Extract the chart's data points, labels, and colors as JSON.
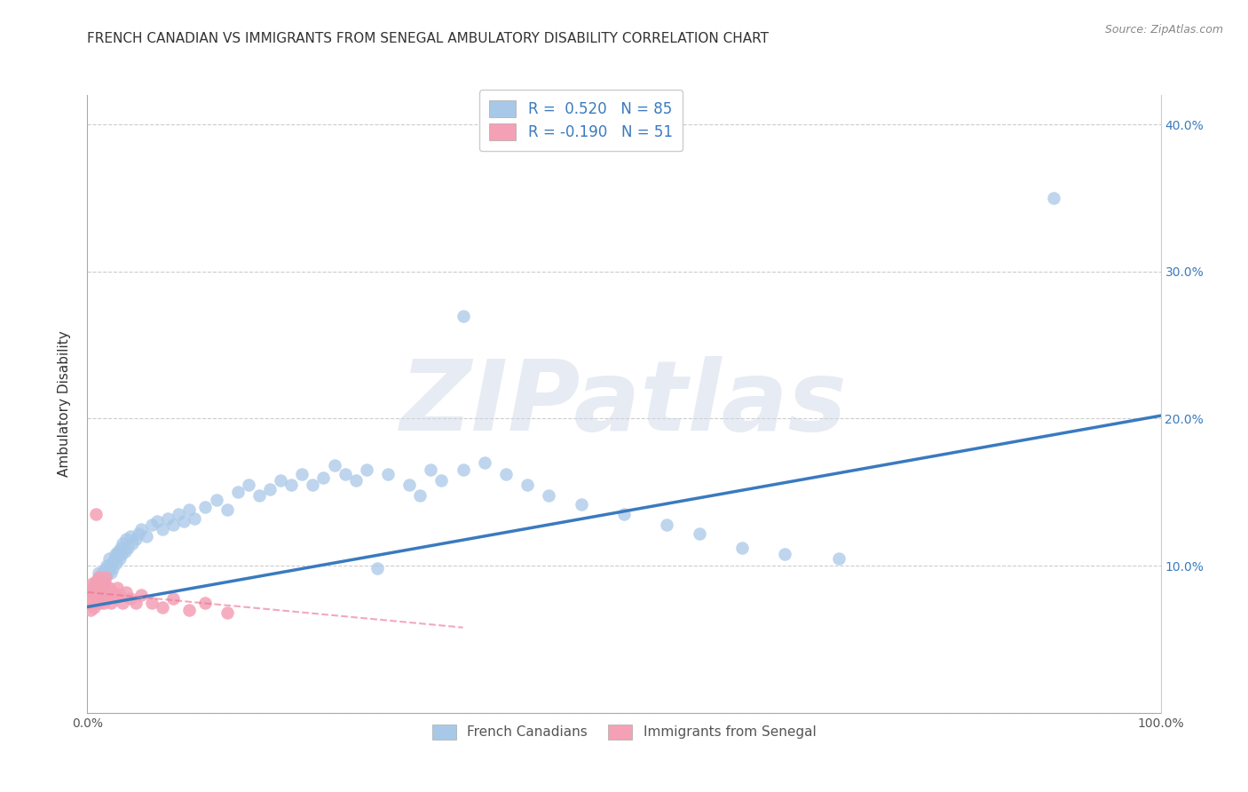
{
  "title": "FRENCH CANADIAN VS IMMIGRANTS FROM SENEGAL AMBULATORY DISABILITY CORRELATION CHART",
  "source": "Source: ZipAtlas.com",
  "ylabel": "Ambulatory Disability",
  "watermark": "ZIPatlas",
  "xlim": [
    0,
    1.0
  ],
  "ylim": [
    0,
    0.42
  ],
  "legend1_label": "R =  0.520   N = 85",
  "legend2_label": "R = -0.190   N = 51",
  "blue_color": "#a8c8e8",
  "pink_color": "#f4a0b5",
  "blue_line_color": "#3a7abf",
  "pink_line_color": "#e87090",
  "tick_fontsize": 10,
  "blue_trend_x": [
    0.0,
    1.0
  ],
  "blue_trend_y": [
    0.072,
    0.202
  ],
  "pink_trend_x": [
    0.0,
    0.35
  ],
  "pink_trend_y": [
    0.082,
    0.058
  ],
  "blue_x": [
    0.005,
    0.007,
    0.008,
    0.009,
    0.01,
    0.01,
    0.011,
    0.012,
    0.013,
    0.014,
    0.015,
    0.015,
    0.016,
    0.017,
    0.018,
    0.019,
    0.02,
    0.02,
    0.021,
    0.022,
    0.023,
    0.024,
    0.025,
    0.026,
    0.027,
    0.028,
    0.029,
    0.03,
    0.031,
    0.032,
    0.033,
    0.035,
    0.036,
    0.038,
    0.04,
    0.042,
    0.045,
    0.048,
    0.05,
    0.055,
    0.06,
    0.065,
    0.07,
    0.075,
    0.08,
    0.085,
    0.09,
    0.095,
    0.1,
    0.11,
    0.12,
    0.13,
    0.14,
    0.15,
    0.16,
    0.17,
    0.18,
    0.19,
    0.2,
    0.21,
    0.22,
    0.23,
    0.24,
    0.25,
    0.26,
    0.28,
    0.3,
    0.31,
    0.32,
    0.33,
    0.35,
    0.37,
    0.39,
    0.41,
    0.43,
    0.46,
    0.5,
    0.54,
    0.57,
    0.61,
    0.65,
    0.7,
    0.35,
    0.9,
    0.27
  ],
  "blue_y": [
    0.085,
    0.08,
    0.075,
    0.09,
    0.085,
    0.095,
    0.088,
    0.082,
    0.092,
    0.095,
    0.088,
    0.095,
    0.092,
    0.098,
    0.1,
    0.095,
    0.098,
    0.105,
    0.1,
    0.095,
    0.102,
    0.098,
    0.105,
    0.108,
    0.102,
    0.108,
    0.11,
    0.105,
    0.112,
    0.108,
    0.115,
    0.11,
    0.118,
    0.112,
    0.12,
    0.115,
    0.118,
    0.122,
    0.125,
    0.12,
    0.128,
    0.13,
    0.125,
    0.132,
    0.128,
    0.135,
    0.13,
    0.138,
    0.132,
    0.14,
    0.145,
    0.138,
    0.15,
    0.155,
    0.148,
    0.152,
    0.158,
    0.155,
    0.162,
    0.155,
    0.16,
    0.168,
    0.162,
    0.158,
    0.165,
    0.162,
    0.155,
    0.148,
    0.165,
    0.158,
    0.165,
    0.17,
    0.162,
    0.155,
    0.148,
    0.142,
    0.135,
    0.128,
    0.122,
    0.112,
    0.108,
    0.105,
    0.27,
    0.35,
    0.098
  ],
  "pink_x": [
    0.002,
    0.003,
    0.003,
    0.004,
    0.004,
    0.005,
    0.005,
    0.006,
    0.006,
    0.007,
    0.007,
    0.008,
    0.008,
    0.009,
    0.009,
    0.01,
    0.01,
    0.011,
    0.011,
    0.012,
    0.012,
    0.013,
    0.013,
    0.014,
    0.014,
    0.015,
    0.015,
    0.016,
    0.016,
    0.017,
    0.018,
    0.019,
    0.02,
    0.021,
    0.022,
    0.024,
    0.026,
    0.028,
    0.03,
    0.033,
    0.036,
    0.04,
    0.045,
    0.05,
    0.06,
    0.07,
    0.08,
    0.095,
    0.11,
    0.13,
    0.008
  ],
  "pink_y": [
    0.075,
    0.08,
    0.07,
    0.085,
    0.075,
    0.078,
    0.088,
    0.072,
    0.082,
    0.078,
    0.088,
    0.075,
    0.085,
    0.078,
    0.09,
    0.082,
    0.092,
    0.078,
    0.088,
    0.082,
    0.075,
    0.085,
    0.078,
    0.088,
    0.08,
    0.085,
    0.075,
    0.088,
    0.08,
    0.092,
    0.082,
    0.078,
    0.085,
    0.08,
    0.075,
    0.082,
    0.078,
    0.085,
    0.08,
    0.075,
    0.082,
    0.078,
    0.075,
    0.08,
    0.075,
    0.072,
    0.078,
    0.07,
    0.075,
    0.068,
    0.135
  ]
}
